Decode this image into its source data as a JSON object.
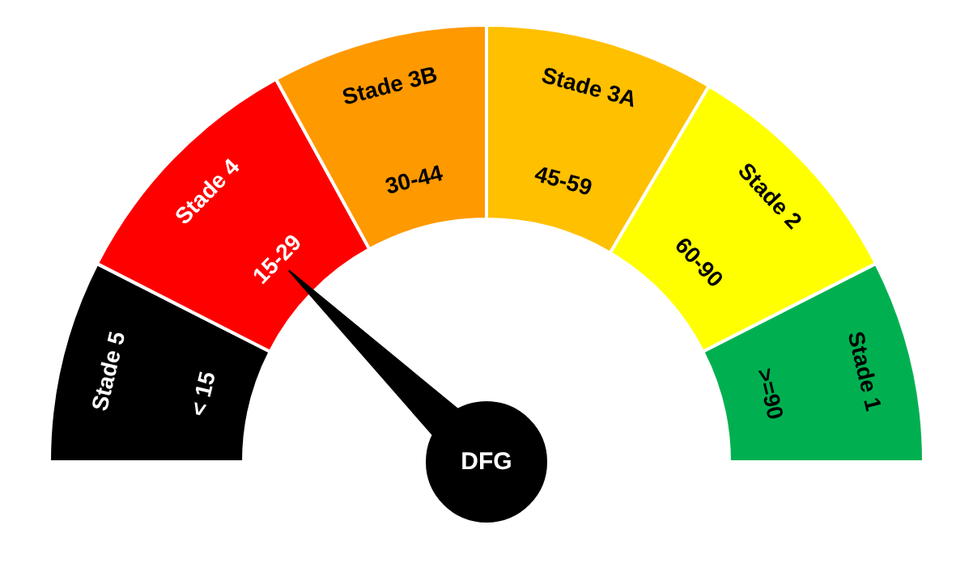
{
  "chart_data": {
    "type": "donut",
    "title": "DFG",
    "categories": [
      "< 15",
      "15-29",
      "30-44",
      "45-59",
      "60-90",
      ">=90"
    ],
    "values": [
      15,
      19,
      16,
      17,
      18,
      15
    ],
    "colors": [
      "#000000",
      "#ff0000",
      "#ff9900",
      "#ffc000",
      "#ffff00",
      "#00b050"
    ],
    "needle": "15-29",
    "annotations": [
      {
        "text": "Stade 5",
        "x": "< 15"
      },
      {
        "text": "Stade 4",
        "x": "15-29"
      },
      {
        "text": "Stade 3B",
        "x": "30-44"
      },
      {
        "text": "Stade 3A",
        "x": "45-59"
      },
      {
        "text": "Stade 2",
        "x": "60-90"
      },
      {
        "text": "Stade 1",
        "x": ">=90"
      }
    ]
  }
}
